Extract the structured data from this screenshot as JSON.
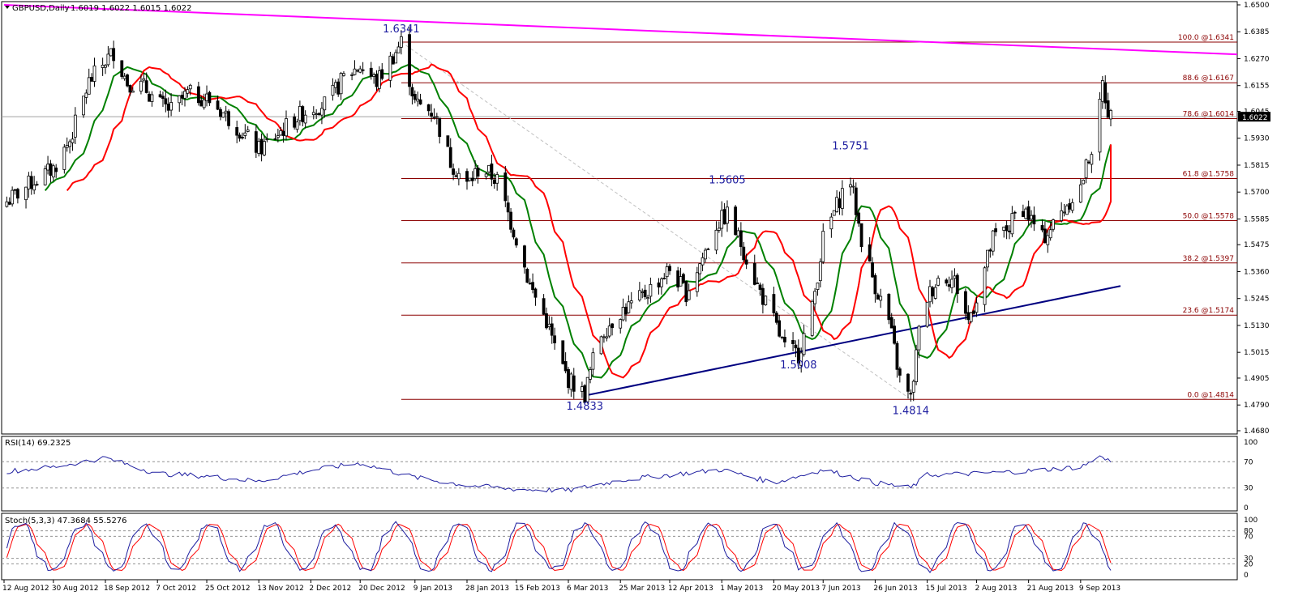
{
  "header": {
    "symbol": "GBPUSD,Daily",
    "ohlc": "1.6019 1.6022 1.6015 1.6022",
    "rsi_label": "RSI(14) 69.2325",
    "stoch_label": "Stoch(5,3,3) 47.3684 55.5276"
  },
  "colors": {
    "up_candle": "#000000",
    "down_candle": "#000000",
    "fib_line": "#8b0000",
    "ma_fast": "#ff0000",
    "ma_slow": "#008000",
    "trend_top": "#ff00ff",
    "trend_bottom": "#000080",
    "rsi": "#1e1ea0",
    "stoch_main": "#1e1ea0",
    "stoch_signal": "#ff0000",
    "annotation": "#1e1ea0"
  },
  "chart_data": {
    "type": "candlestick",
    "symbol": "GBPUSD",
    "timeframe": "Daily",
    "current_price": "1.6022",
    "price_axis": {
      "range": [
        1.468,
        1.65
      ],
      "ticks": [
        "1.6500",
        "1.6385",
        "1.6270",
        "1.6155",
        "1.6045",
        "1.5930",
        "1.5815",
        "1.5700",
        "1.5585",
        "1.5475",
        "1.5360",
        "1.5245",
        "1.5130",
        "1.5015",
        "1.4905",
        "1.4790",
        "1.4680"
      ]
    },
    "date_axis": {
      "range": [
        "2012-08-12",
        "2013-09-20"
      ],
      "ticks": [
        {
          "label": "12 Aug 2012",
          "date": "2012-08-12"
        },
        {
          "label": "30 Aug 2012",
          "date": "2012-08-30"
        },
        {
          "label": "18 Sep 2012",
          "date": "2012-09-18"
        },
        {
          "label": "7 Oct 2012",
          "date": "2012-10-07"
        },
        {
          "label": "25 Oct 2012",
          "date": "2012-10-25"
        },
        {
          "label": "13 Nov 2012",
          "date": "2012-11-13"
        },
        {
          "label": "2 Dec 2012",
          "date": "2012-12-02"
        },
        {
          "label": "20 Dec 2012",
          "date": "2012-12-20"
        },
        {
          "label": "9 Jan 2013",
          "date": "2013-01-09"
        },
        {
          "label": "28 Jan 2013",
          "date": "2013-01-28"
        },
        {
          "label": "15 Feb 2013",
          "date": "2013-02-15"
        },
        {
          "label": "6 Mar 2013",
          "date": "2013-03-06"
        },
        {
          "label": "25 Mar 2013",
          "date": "2013-03-25"
        },
        {
          "label": "12 Apr 2013",
          "date": "2013-04-12"
        },
        {
          "label": "1 May 2013",
          "date": "2013-05-01"
        },
        {
          "label": "20 May 2013",
          "date": "2013-05-20"
        },
        {
          "label": "7 Jun 2013",
          "date": "2013-06-07"
        },
        {
          "label": "26 Jun 2013",
          "date": "2013-06-26"
        },
        {
          "label": "15 Jul 2013",
          "date": "2013-07-15"
        },
        {
          "label": "2 Aug 2013",
          "date": "2013-08-02"
        },
        {
          "label": "21 Aug 2013",
          "date": "2013-08-21"
        },
        {
          "label": "9 Sep 2013",
          "date": "2013-09-09"
        }
      ]
    },
    "price_path": [
      [
        "2012-08-12",
        1.565
      ],
      [
        "2012-08-22",
        1.574
      ],
      [
        "2012-08-30",
        1.58
      ],
      [
        "2012-09-05",
        1.592
      ],
      [
        "2012-09-12",
        1.617
      ],
      [
        "2012-09-18",
        1.626
      ],
      [
        "2012-09-21",
        1.63
      ],
      [
        "2012-09-26",
        1.617
      ],
      [
        "2012-10-02",
        1.615
      ],
      [
        "2012-10-07",
        1.608
      ],
      [
        "2012-10-12",
        1.605
      ],
      [
        "2012-10-18",
        1.612
      ],
      [
        "2012-10-25",
        1.61
      ],
      [
        "2012-10-30",
        1.605
      ],
      [
        "2012-11-05",
        1.598
      ],
      [
        "2012-11-13",
        1.588
      ],
      [
        "2012-11-20",
        1.595
      ],
      [
        "2012-11-27",
        1.602
      ],
      [
        "2012-12-02",
        1.606
      ],
      [
        "2012-12-08",
        1.608
      ],
      [
        "2012-12-14",
        1.619
      ],
      [
        "2012-12-20",
        1.624
      ],
      [
        "2012-12-26",
        1.617
      ],
      [
        "2013-01-02",
        1.63
      ],
      [
        "2013-01-04",
        1.6341
      ],
      [
        "2013-01-09",
        1.608
      ],
      [
        "2013-01-16",
        1.604
      ],
      [
        "2013-01-22",
        1.583
      ],
      [
        "2013-01-28",
        1.573
      ],
      [
        "2013-02-02",
        1.581
      ],
      [
        "2013-02-08",
        1.575
      ],
      [
        "2013-02-15",
        1.55
      ],
      [
        "2013-02-20",
        1.53
      ],
      [
        "2013-02-26",
        1.515
      ],
      [
        "2013-03-02",
        1.5
      ],
      [
        "2013-03-06",
        1.49
      ],
      [
        "2013-03-12",
        1.4833
      ],
      [
        "2013-03-17",
        1.508
      ],
      [
        "2013-03-25",
        1.519
      ],
      [
        "2013-03-31",
        1.523
      ],
      [
        "2013-04-06",
        1.53
      ],
      [
        "2013-04-12",
        1.537
      ],
      [
        "2013-04-18",
        1.527
      ],
      [
        "2013-04-24",
        1.542
      ],
      [
        "2013-04-29",
        1.556
      ],
      [
        "2013-05-03",
        1.5605
      ],
      [
        "2013-05-08",
        1.548
      ],
      [
        "2013-05-14",
        1.53
      ],
      [
        "2013-05-20",
        1.515
      ],
      [
        "2013-05-24",
        1.503
      ],
      [
        "2013-05-29",
        1.5008
      ],
      [
        "2013-06-03",
        1.52
      ],
      [
        "2013-06-07",
        1.55
      ],
      [
        "2013-06-14",
        1.57
      ],
      [
        "2013-06-17",
        1.5751
      ],
      [
        "2013-06-21",
        1.55
      ],
      [
        "2013-06-26",
        1.53
      ],
      [
        "2013-07-01",
        1.515
      ],
      [
        "2013-07-05",
        1.49
      ],
      [
        "2013-07-09",
        1.4814
      ],
      [
        "2013-07-12",
        1.51
      ],
      [
        "2013-07-15",
        1.525
      ],
      [
        "2013-07-20",
        1.535
      ],
      [
        "2013-07-25",
        1.532
      ],
      [
        "2013-07-30",
        1.515
      ],
      [
        "2013-08-02",
        1.525
      ],
      [
        "2013-08-08",
        1.55
      ],
      [
        "2013-08-14",
        1.555
      ],
      [
        "2013-08-18",
        1.565
      ],
      [
        "2013-08-21",
        1.56
      ],
      [
        "2013-08-26",
        1.55
      ],
      [
        "2013-08-30",
        1.556
      ],
      [
        "2013-09-04",
        1.565
      ],
      [
        "2013-09-09",
        1.572
      ],
      [
        "2013-09-12",
        1.585
      ],
      [
        "2013-09-15",
        1.596
      ],
      [
        "2013-09-17",
        1.6161
      ],
      [
        "2013-09-19",
        1.605
      ],
      [
        "2013-09-20",
        1.6022
      ]
    ],
    "fibonacci_levels": [
      {
        "label": "100.0 @1.6341",
        "price": 1.6341
      },
      {
        "label": "88.6 @1.6167",
        "price": 1.6167
      },
      {
        "label": "78.6 @1.6014",
        "price": 1.6014
      },
      {
        "label": "61.8 @1.5758",
        "price": 1.5758
      },
      {
        "label": "50.0 @1.5578",
        "price": 1.5578
      },
      {
        "label": "38.2 @1.5397",
        "price": 1.5397
      },
      {
        "label": "23.6 @1.5174",
        "price": 1.5174
      },
      {
        "label": "0.0 @1.4814",
        "price": 1.4814
      }
    ],
    "annotations": [
      {
        "text": "1.6341",
        "date": "2013-01-04",
        "price": 1.6341
      },
      {
        "text": "1.5605",
        "date": "2013-05-03",
        "price": 1.5605
      },
      {
        "text": "1.5751",
        "date": "2013-06-17",
        "price": 1.5751
      },
      {
        "text": "1.4833",
        "date": "2013-03-12",
        "price": 1.4833
      },
      {
        "text": "1.5008",
        "date": "2013-05-29",
        "price": 1.5008
      },
      {
        "text": "1.4814",
        "date": "2013-07-09",
        "price": 1.4814
      }
    ],
    "trendlines": [
      {
        "name": "descending resistance",
        "from": [
          "2012-08-12",
          1.65
        ],
        "to": [
          "2013-09-20",
          1.631
        ]
      },
      {
        "name": "ascending support",
        "from": [
          "2013-03-12",
          1.483
        ],
        "to": [
          "2013-09-20",
          1.529
        ]
      }
    ],
    "rsi": {
      "period": 14,
      "last": 69.2325,
      "range": [
        0,
        100
      ],
      "ticks": [
        "100",
        "70",
        "30",
        "0"
      ],
      "levels": [
        70,
        30
      ],
      "path": [
        [
          "2012-08-12",
          55
        ],
        [
          "2012-08-30",
          62
        ],
        [
          "2012-09-18",
          76
        ],
        [
          "2012-10-07",
          52
        ],
        [
          "2012-10-25",
          48
        ],
        [
          "2012-11-13",
          40
        ],
        [
          "2012-12-02",
          57
        ],
        [
          "2012-12-20",
          68
        ],
        [
          "2013-01-09",
          46
        ],
        [
          "2013-01-28",
          34
        ],
        [
          "2013-02-15",
          28
        ],
        [
          "2013-03-06",
          26
        ],
        [
          "2013-03-25",
          42
        ],
        [
          "2013-04-12",
          50
        ],
        [
          "2013-05-01",
          58
        ],
        [
          "2013-05-20",
          38
        ],
        [
          "2013-06-07",
          58
        ],
        [
          "2013-06-26",
          38
        ],
        [
          "2013-07-09",
          30
        ],
        [
          "2013-07-15",
          50
        ],
        [
          "2013-08-02",
          52
        ],
        [
          "2013-08-21",
          56
        ],
        [
          "2013-09-09",
          62
        ],
        [
          "2013-09-17",
          79
        ],
        [
          "2013-09-20",
          69
        ]
      ]
    },
    "stochastic": {
      "params": "5,3,3",
      "main_last": 47.3684,
      "signal_last": 55.5276,
      "range": [
        0,
        100
      ],
      "ticks": [
        "100",
        "80",
        "70",
        "30",
        "20",
        "0"
      ],
      "levels": [
        80,
        70,
        30,
        20
      ]
    }
  }
}
